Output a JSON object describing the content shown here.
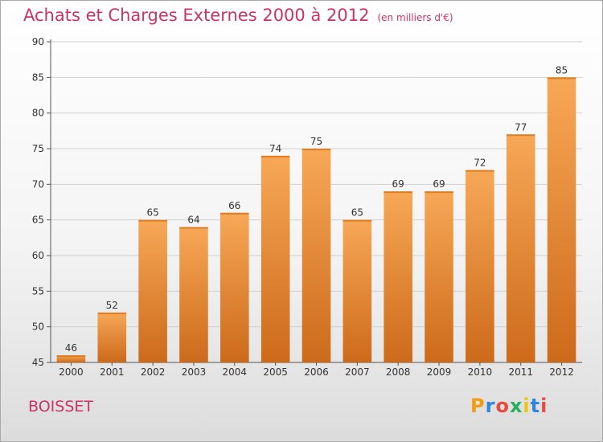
{
  "header": {
    "title": "Achats et Charges Externes 2000 à 2012",
    "subtitle": "(en milliers d'€)"
  },
  "footer": {
    "place": "BOISSET",
    "logo_letters": [
      "P",
      "r",
      "o",
      "x",
      "i",
      "t",
      "i"
    ],
    "logo_colors": [
      "#f39c12",
      "#2e86de",
      "#e74c3c",
      "#27ae60",
      "#f1c40f",
      "#2e86de",
      "#e74c3c"
    ]
  },
  "chart_data": {
    "type": "bar",
    "categories": [
      "2000",
      "2001",
      "2002",
      "2003",
      "2004",
      "2005",
      "2006",
      "2007",
      "2008",
      "2009",
      "2010",
      "2011",
      "2012"
    ],
    "values": [
      46,
      52,
      65,
      64,
      66,
      74,
      75,
      65,
      69,
      69,
      72,
      77,
      85
    ],
    "ylim": [
      45,
      90
    ],
    "yticks": [
      45,
      50,
      55,
      60,
      65,
      70,
      75,
      80,
      85,
      90
    ],
    "grid": true,
    "bar_color_top": "#f7a857",
    "bar_color_bottom": "#cc6a1a"
  }
}
